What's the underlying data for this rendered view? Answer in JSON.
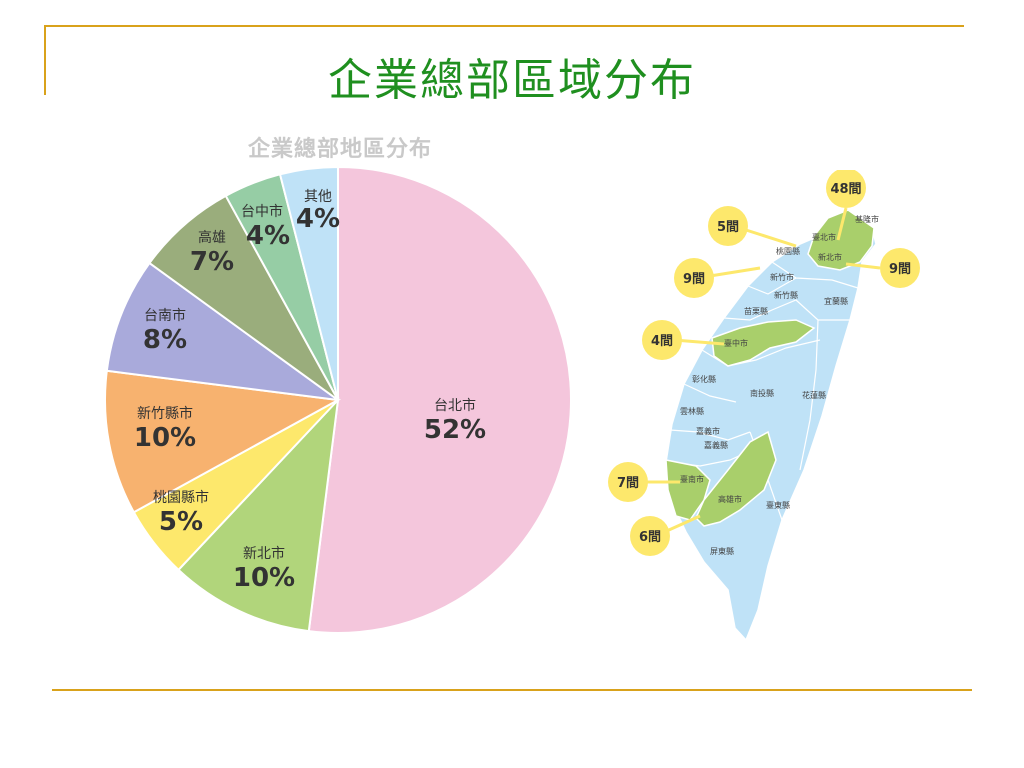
{
  "slide": {
    "title": "企業總部區域分布",
    "rule_color": "#d9a21b",
    "title_color": "#1f8f1f"
  },
  "chart_data": {
    "type": "pie",
    "title": "企業總部地區分布",
    "labels": [
      "台北市",
      "新北市",
      "桃園縣市",
      "新竹縣市",
      "台南市",
      "高雄",
      "台中市",
      "其他"
    ],
    "values": [
      52,
      10,
      5,
      10,
      8,
      7,
      4,
      4
    ],
    "value_labels": [
      "52%",
      "10%",
      "5%",
      "10%",
      "8%",
      "7%",
      "4%",
      "4%"
    ],
    "colors": [
      "#f4c6dc",
      "#b1d57b",
      "#fde86c",
      "#f7b26f",
      "#a9aadb",
      "#9aad7c",
      "#96cda5",
      "#bfe2f7"
    ],
    "start": "12 o'clock",
    "direction": "clockwise"
  },
  "map": {
    "counties": [
      "基隆市",
      "臺北市",
      "新北市",
      "桃園縣",
      "新竹市",
      "新竹縣",
      "宜蘭縣",
      "苗栗縣",
      "臺中市",
      "彰化縣",
      "南投縣",
      "花蓮縣",
      "雲林縣",
      "嘉義市",
      "嘉義縣",
      "臺南市",
      "高雄市",
      "臺東縣",
      "屏東縣"
    ],
    "callouts": [
      "48間",
      "5間",
      "9間",
      "9間",
      "4間",
      "7間",
      "6間"
    ],
    "land_color": "#bfe2f7",
    "highlight_color": "#a9cf6b",
    "bubble_color": "#fde86c"
  }
}
